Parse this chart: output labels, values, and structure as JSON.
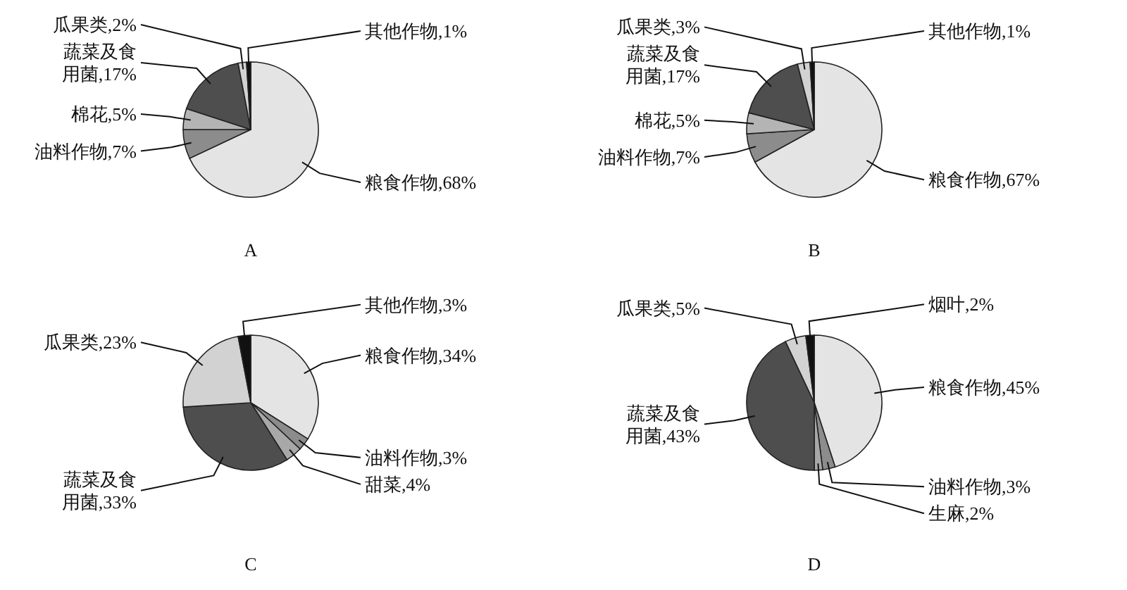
{
  "chart_data": [
    {
      "type": "pie",
      "title": "A",
      "categories": [
        "粮食作物",
        "油料作物",
        "棉花",
        "蔬菜及食用菌",
        "瓜果类",
        "其他作物"
      ],
      "values": [
        68,
        7,
        5,
        17,
        2,
        1
      ],
      "value_labels": [
        "68%",
        "7%",
        "5%",
        "17%",
        "2%",
        "1%"
      ],
      "colors": [
        "#e4e4e4",
        "#8c8c8c",
        "#b4b4b4",
        "#4e4e4e",
        "#d2d2d2",
        "#111111"
      ]
    },
    {
      "type": "pie",
      "title": "B",
      "categories": [
        "粮食作物",
        "油料作物",
        "棉花",
        "蔬菜及食用菌",
        "瓜果类",
        "其他作物"
      ],
      "values": [
        67,
        7,
        5,
        17,
        3,
        1
      ],
      "value_labels": [
        "67%",
        "7%",
        "5%",
        "17%",
        "3%",
        "1%"
      ],
      "colors": [
        "#e4e4e4",
        "#8c8c8c",
        "#b4b4b4",
        "#4e4e4e",
        "#d2d2d2",
        "#111111"
      ]
    },
    {
      "type": "pie",
      "title": "C",
      "categories": [
        "粮食作物",
        "油料作物",
        "甜菜",
        "蔬菜及食用菌",
        "瓜果类",
        "其他作物"
      ],
      "values": [
        34,
        3,
        4,
        33,
        23,
        3
      ],
      "value_labels": [
        "34%",
        "3%",
        "4%",
        "33%",
        "23%",
        "3%"
      ],
      "colors": [
        "#e4e4e4",
        "#8c8c8c",
        "#a8a8a8",
        "#4e4e4e",
        "#d2d2d2",
        "#111111"
      ]
    },
    {
      "type": "pie",
      "title": "D",
      "categories": [
        "粮食作物",
        "油料作物",
        "生麻",
        "蔬菜及食用菌",
        "瓜果类",
        "烟叶"
      ],
      "values": [
        45,
        3,
        2,
        43,
        5,
        2
      ],
      "value_labels": [
        "45%",
        "3%",
        "2%",
        "43%",
        "5%",
        "2%"
      ],
      "colors": [
        "#e4e4e4",
        "#8c8c8c",
        "#a8a8a8",
        "#4e4e4e",
        "#d2d2d2",
        "#111111"
      ]
    }
  ]
}
